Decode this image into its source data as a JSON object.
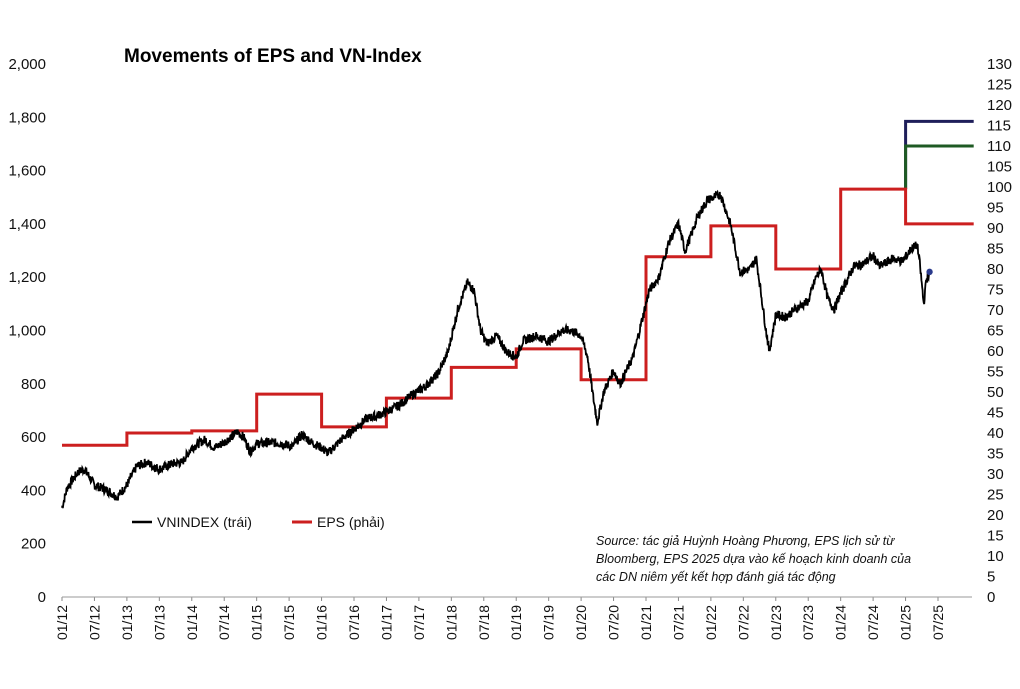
{
  "chart_data": {
    "type": "line",
    "title": "Movements of EPS and VN-Index",
    "left_axis": {
      "ylim": [
        0,
        2000
      ],
      "ticks": [
        "0",
        "200",
        "400",
        "600",
        "800",
        "1,000",
        "1,200",
        "1,400",
        "1,600",
        "1,800",
        "2,000"
      ]
    },
    "right_axis": {
      "ylim": [
        0,
        130
      ],
      "ticks": [
        "0",
        "5",
        "10",
        "15",
        "20",
        "25",
        "30",
        "35",
        "40",
        "45",
        "50",
        "55",
        "60",
        "65",
        "70",
        "75",
        "80",
        "85",
        "90",
        "95",
        "100",
        "105",
        "110",
        "115",
        "120",
        "125",
        "130"
      ]
    },
    "x_ticks": [
      "01/12",
      "07/12",
      "01/13",
      "07/13",
      "01/14",
      "07/14",
      "01/15",
      "07/15",
      "01/16",
      "07/16",
      "01/17",
      "07/17",
      "01/18",
      "07/18",
      "01/19",
      "07/19",
      "01/20",
      "07/20",
      "01/21",
      "07/21",
      "01/22",
      "07/22",
      "01/23",
      "07/23",
      "01/24",
      "07/24",
      "01/25",
      "07/25"
    ],
    "legend": {
      "position": "bottom-left",
      "items": [
        {
          "label": "VNINDEX (trái)",
          "color": "#000000"
        },
        {
          "label": "EPS (phải)",
          "color": "#cc1f1f"
        }
      ]
    },
    "annotation": [
      "Source: tác giả Huỳnh Hoàng Phương, EPS lịch sử từ",
      "Bloomberg, EPS 2025 dựa vào kế hoạch kinh doanh của",
      "các DN niêm yết kết hợp đánh giá tác động"
    ],
    "series": [
      {
        "name": "VNINDEX (trái)",
        "axis": "left",
        "color": "#000000",
        "points": [
          [
            2012.0,
            335
          ],
          [
            2012.08,
            410
          ],
          [
            2012.25,
            470
          ],
          [
            2012.35,
            480
          ],
          [
            2012.5,
            420
          ],
          [
            2012.7,
            400
          ],
          [
            2012.85,
            375
          ],
          [
            2013.0,
            420
          ],
          [
            2013.15,
            490
          ],
          [
            2013.3,
            505
          ],
          [
            2013.5,
            480
          ],
          [
            2013.7,
            500
          ],
          [
            2013.85,
            505
          ],
          [
            2014.0,
            560
          ],
          [
            2014.2,
            590
          ],
          [
            2014.35,
            560
          ],
          [
            2014.5,
            580
          ],
          [
            2014.7,
            620
          ],
          [
            2014.8,
            600
          ],
          [
            2014.9,
            545
          ],
          [
            2015.0,
            575
          ],
          [
            2015.2,
            580
          ],
          [
            2015.4,
            575
          ],
          [
            2015.55,
            565
          ],
          [
            2015.7,
            610
          ],
          [
            2015.85,
            580
          ],
          [
            2016.0,
            560
          ],
          [
            2016.1,
            540
          ],
          [
            2016.3,
            590
          ],
          [
            2016.5,
            630
          ],
          [
            2016.7,
            670
          ],
          [
            2016.85,
            680
          ],
          [
            2017.0,
            695
          ],
          [
            2017.2,
            720
          ],
          [
            2017.4,
            760
          ],
          [
            2017.6,
            790
          ],
          [
            2017.8,
            840
          ],
          [
            2017.95,
            920
          ],
          [
            2018.1,
            1080
          ],
          [
            2018.25,
            1180
          ],
          [
            2018.35,
            1150
          ],
          [
            2018.45,
            1000
          ],
          [
            2018.55,
            950
          ],
          [
            2018.7,
            980
          ],
          [
            2018.85,
            920
          ],
          [
            2019.0,
            900
          ],
          [
            2019.1,
            960
          ],
          [
            2019.3,
            980
          ],
          [
            2019.5,
            960
          ],
          [
            2019.7,
            1000
          ],
          [
            2019.85,
            1000
          ],
          [
            2020.0,
            980
          ],
          [
            2020.1,
            900
          ],
          [
            2020.18,
            760
          ],
          [
            2020.25,
            655
          ],
          [
            2020.35,
            770
          ],
          [
            2020.5,
            850
          ],
          [
            2020.6,
            800
          ],
          [
            2020.8,
            900
          ],
          [
            2020.95,
            1050
          ],
          [
            2021.05,
            1150
          ],
          [
            2021.2,
            1200
          ],
          [
            2021.35,
            1330
          ],
          [
            2021.5,
            1400
          ],
          [
            2021.6,
            1300
          ],
          [
            2021.7,
            1360
          ],
          [
            2021.8,
            1430
          ],
          [
            2021.95,
            1490
          ],
          [
            2022.05,
            1500
          ],
          [
            2022.15,
            1510
          ],
          [
            2022.3,
            1400
          ],
          [
            2022.45,
            1220
          ],
          [
            2022.6,
            1230
          ],
          [
            2022.7,
            1270
          ],
          [
            2022.85,
            1000
          ],
          [
            2022.9,
            920
          ],
          [
            2023.0,
            1060
          ],
          [
            2023.15,
            1050
          ],
          [
            2023.3,
            1080
          ],
          [
            2023.5,
            1110
          ],
          [
            2023.62,
            1200
          ],
          [
            2023.7,
            1230
          ],
          [
            2023.8,
            1120
          ],
          [
            2023.9,
            1080
          ],
          [
            2024.0,
            1140
          ],
          [
            2024.2,
            1240
          ],
          [
            2024.35,
            1250
          ],
          [
            2024.5,
            1280
          ],
          [
            2024.6,
            1240
          ],
          [
            2024.8,
            1270
          ],
          [
            2024.95,
            1260
          ],
          [
            2025.1,
            1310
          ],
          [
            2025.18,
            1320
          ],
          [
            2025.22,
            1250
          ],
          [
            2025.28,
            1100
          ],
          [
            2025.32,
            1190
          ],
          [
            2025.36,
            1210
          ]
        ]
      },
      {
        "name": "EPS (phải)",
        "axis": "right",
        "color": "#cc1f1f",
        "points": [
          [
            2012.0,
            37
          ],
          [
            2013.0,
            37
          ],
          [
            2013.0,
            40
          ],
          [
            2014.0,
            40
          ],
          [
            2014.0,
            40.5
          ],
          [
            2015.0,
            40.5
          ],
          [
            2015.0,
            49.5
          ],
          [
            2016.0,
            49.5
          ],
          [
            2016.0,
            41.5
          ],
          [
            2017.0,
            41.5
          ],
          [
            2017.0,
            48.5
          ],
          [
            2018.0,
            48.5
          ],
          [
            2018.0,
            56
          ],
          [
            2019.0,
            56
          ],
          [
            2019.0,
            60.5
          ],
          [
            2020.0,
            60.5
          ],
          [
            2020.0,
            53
          ],
          [
            2021.0,
            53
          ],
          [
            2021.0,
            83
          ],
          [
            2022.0,
            83
          ],
          [
            2022.0,
            90.5
          ],
          [
            2023.0,
            90.5
          ],
          [
            2023.0,
            80
          ],
          [
            2024.0,
            80
          ],
          [
            2024.0,
            99.5
          ],
          [
            2025.0,
            99.5
          ],
          [
            2025.0,
            91
          ],
          [
            2026.05,
            91
          ]
        ]
      },
      {
        "name": "",
        "axis": "right",
        "color": "#1e1e5a",
        "points": [
          [
            2025.0,
            99.5
          ],
          [
            2025.0,
            116
          ],
          [
            2026.05,
            116
          ]
        ]
      },
      {
        "name": "",
        "axis": "right",
        "color": "#1e5a23",
        "points": [
          [
            2025.0,
            99.5
          ],
          [
            2025.0,
            110
          ],
          [
            2026.05,
            110
          ]
        ]
      }
    ],
    "markers": [
      {
        "x": 2025.37,
        "y": 1220,
        "axis": "left",
        "color": "#2a3a8c"
      }
    ]
  }
}
